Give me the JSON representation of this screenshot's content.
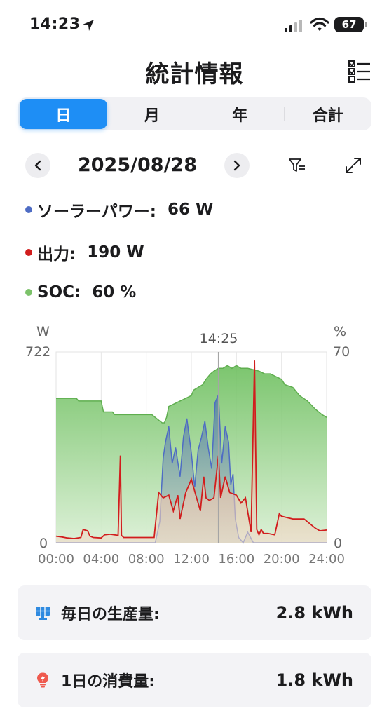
{
  "status_bar": {
    "time": "14:23",
    "battery": "67"
  },
  "header": {
    "title": "統計情報"
  },
  "tabs": [
    {
      "label": "日",
      "active": true
    },
    {
      "label": "月",
      "active": false
    },
    {
      "label": "年",
      "active": false
    },
    {
      "label": "合計",
      "active": false
    }
  ],
  "date_nav": {
    "date": "2025/08/28"
  },
  "legend": {
    "solar": {
      "label": "ソーラーパワー:",
      "value": "66 W",
      "color": "#4e6cc4"
    },
    "output": {
      "label": "出力:",
      "value": "190 W",
      "color": "#d11d1d"
    },
    "soc": {
      "label": "SOC:",
      "value": "60 %",
      "color": "#7cc26a"
    }
  },
  "chart_data": {
    "type": "area",
    "cursor_label": "14:25",
    "y_left": {
      "unit": "W",
      "max_label": "722",
      "min_label": "0",
      "range": [
        0,
        722
      ]
    },
    "y_right": {
      "unit": "%",
      "max_label": "70",
      "min_label": "0",
      "range": [
        0,
        70
      ]
    },
    "x_ticks": [
      "00:00",
      "04:00",
      "08:00",
      "12:00",
      "16:00",
      "20:00",
      "24:00"
    ],
    "x_range_hours": [
      0,
      24
    ],
    "cursor_hour": 14.42,
    "series": [
      {
        "name": "SOC",
        "axis": "right",
        "color": "#7cc26a",
        "x": [
          0,
          1.8,
          2,
          4,
          4.2,
          5,
          5.2,
          8.5,
          8.8,
          9.4,
          9.6,
          9.8,
          10,
          11,
          11.5,
          12,
          12.2,
          12.6,
          13,
          13.3,
          13.7,
          14,
          14.4,
          14.8,
          15.2,
          15.6,
          16,
          16.4,
          17,
          18,
          18.5,
          19,
          19.5,
          20,
          20.3,
          21,
          21.6,
          22.3,
          23,
          23.6,
          24
        ],
        "y": [
          53,
          53,
          52,
          52,
          48,
          48,
          47,
          47,
          46,
          44,
          44,
          46,
          50,
          52,
          53,
          54,
          56,
          57,
          58,
          60,
          62,
          63,
          64,
          64,
          65,
          64,
          65,
          64,
          64,
          63,
          62,
          62,
          61,
          60,
          58,
          57,
          54,
          52,
          49,
          47,
          46
        ]
      },
      {
        "name": "Solar",
        "axis": "left",
        "color": "#4e6cc4",
        "x": [
          0,
          8.8,
          9.2,
          9.5,
          9.7,
          10.0,
          10.3,
          10.6,
          11.0,
          11.3,
          11.6,
          12.0,
          12.3,
          12.6,
          12.9,
          13.2,
          13.5,
          13.8,
          14.1,
          14.4,
          14.7,
          15.0,
          15.3,
          15.5,
          15.7,
          15.9,
          16.2,
          16.6,
          17.0,
          17.5,
          24
        ],
        "y": [
          0,
          0,
          80,
          320,
          380,
          440,
          300,
          360,
          250,
          400,
          470,
          340,
          210,
          350,
          400,
          460,
          360,
          280,
          530,
          560,
          300,
          440,
          380,
          220,
          260,
          90,
          20,
          0,
          40,
          0,
          0
        ]
      },
      {
        "name": "Output",
        "axis": "left",
        "color": "#d11d1d",
        "x": [
          0,
          0.5,
          1,
          1.6,
          2.2,
          2.4,
          2.8,
          3.0,
          3.3,
          4,
          4.3,
          4.8,
          5.5,
          5.7,
          5.8,
          6,
          8.7,
          9.1,
          9.5,
          10,
          10.4,
          10.8,
          11,
          11.5,
          12.0,
          12.4,
          12.8,
          13.1,
          13.3,
          13.6,
          14.0,
          14.4,
          14.6,
          14.8,
          15.0,
          15.4,
          16.0,
          16.4,
          16.8,
          17.3,
          17.6,
          17.8,
          18.0,
          18.2,
          18.4,
          18.8,
          19.4,
          19.8,
          20.0,
          21,
          22,
          23,
          23.4,
          24
        ],
        "y": [
          25,
          22,
          18,
          16,
          20,
          50,
          45,
          25,
          20,
          18,
          30,
          32,
          28,
          330,
          28,
          20,
          20,
          190,
          170,
          180,
          120,
          180,
          90,
          190,
          240,
          180,
          120,
          250,
          170,
          160,
          170,
          330,
          170,
          210,
          250,
          190,
          180,
          150,
          170,
          40,
          690,
          50,
          30,
          50,
          35,
          35,
          30,
          110,
          100,
          90,
          90,
          55,
          45,
          48
        ]
      }
    ]
  },
  "cards": {
    "production": {
      "label": "毎日の生産量:",
      "value": "2.8 kWh"
    },
    "consumption": {
      "label": "1日の消費量:",
      "value": "1.8 kWh"
    }
  }
}
